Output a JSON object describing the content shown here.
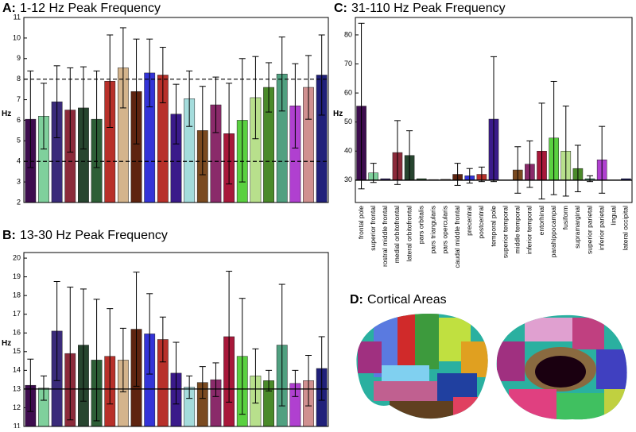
{
  "chart_data": [
    {
      "type": "bar",
      "panel": "A:",
      "title": "1-12 Hz Peak Frequency",
      "y_label": "Hz",
      "values": [
        6.05,
        6.2,
        6.9,
        6.5,
        6.6,
        6.05,
        7.9,
        8.55,
        7.4,
        8.3,
        8.2,
        6.3,
        7.05,
        5.5,
        6.75,
        5.35,
        6.0,
        7.1,
        7.6,
        8.25,
        6.7,
        7.6,
        8.2
      ],
      "errors": [
        2.35,
        1.6,
        1.75,
        2.05,
        2.0,
        2.35,
        2.25,
        1.95,
        2.55,
        1.65,
        1.35,
        1.45,
        1.35,
        2.15,
        1.35,
        2.45,
        3.0,
        2.0,
        1.2,
        1.8,
        2.05,
        1.55,
        1.95
      ],
      "colors": [
        "#3d0c4e",
        "#7fd09c",
        "#3a2b7a",
        "#8b2a3a",
        "#27452f",
        "#2d5e36",
        "#b8302a",
        "#d4b48c",
        "#5e2410",
        "#3434d8",
        "#b8302a",
        "#3a1a8a",
        "#a4dcdc",
        "#7a4a20",
        "#8a2a6a",
        "#a8183a",
        "#5ad040",
        "#b8e08c",
        "#4a8a2a",
        "#50a080",
        "#b040d0",
        "#d09090",
        "#20207a"
      ],
      "ylim": [
        2,
        11
      ],
      "yticks": [
        2,
        3,
        4,
        5,
        6,
        7,
        8,
        9,
        10,
        11
      ],
      "hlines": [
        4,
        8
      ],
      "hline_style": "dashed"
    },
    {
      "type": "bar",
      "panel": "B:",
      "title": "13-30 Hz Peak Frequency",
      "y_label": "Hz",
      "values": [
        13.2,
        13.05,
        16.1,
        14.9,
        15.35,
        14.55,
        14.75,
        14.55,
        16.2,
        15.95,
        15.65,
        13.85,
        13.1,
        13.35,
        13.5,
        15.8,
        14.75,
        13.7,
        13.45,
        15.35,
        13.3,
        13.45,
        14.1
      ],
      "errors": [
        1.4,
        0.65,
        2.65,
        3.55,
        3.0,
        3.25,
        2.55,
        1.7,
        3.05,
        2.15,
        1.2,
        1.65,
        0.6,
        0.85,
        0.9,
        3.5,
        3.1,
        1.45,
        0.55,
        3.25,
        0.7,
        1.35,
        1.7
      ],
      "colors": [
        "#3d0c4e",
        "#7fd09c",
        "#3a2b7a",
        "#8b2a3a",
        "#27452f",
        "#2d5e36",
        "#b8302a",
        "#d4b48c",
        "#5e2410",
        "#3434d8",
        "#b8302a",
        "#3a1a8a",
        "#a4dcdc",
        "#7a4a20",
        "#8a2a6a",
        "#a8183a",
        "#5ad040",
        "#b8e08c",
        "#4a8a2a",
        "#50a080",
        "#b040d0",
        "#d09090",
        "#20207a"
      ],
      "ylim": [
        11,
        20.3
      ],
      "yticks": [
        11,
        12,
        13,
        14,
        15,
        16,
        17,
        18,
        19,
        20
      ],
      "hlines": [
        13
      ],
      "hline_style": "solid"
    },
    {
      "type": "bar",
      "panel": "C:",
      "title": "31-110 Hz Peak Frequency",
      "y_label": "Hz",
      "categories": [
        "frontal pole",
        "superior frontal",
        "rostral middle frontal",
        "medial orbitofrontal",
        "lateral orbitofrontal",
        "pars orbitalis",
        "pars triangularis",
        "pars opercularis",
        "caudal middle frontal",
        "precentral",
        "postcentral",
        "temporal pole",
        "superior temporal",
        "middle temporal",
        "inferior temporal",
        "entorhinal",
        "parahippocampal",
        "fusiform",
        "supramarginal",
        "superior parietal",
        "inferior parietal",
        "lingual",
        "lateral occipital"
      ],
      "values": [
        55.5,
        32.5,
        30.5,
        39.5,
        38.5,
        30.5,
        30.2,
        30.3,
        32,
        31.5,
        32,
        51,
        30,
        33.5,
        35.5,
        40,
        44.5,
        40,
        34,
        30.5,
        37,
        30,
        30.5
      ],
      "errors": [
        28.5,
        3.3,
        0,
        11,
        8.5,
        0,
        0,
        0,
        3.8,
        2.5,
        2.5,
        21.5,
        0,
        8,
        8,
        16.5,
        19.5,
        15.5,
        8,
        1,
        11.5,
        0,
        0
      ],
      "colors": [
        "#3d0c4e",
        "#7fd09c",
        "#3a2b7a",
        "#8b2a3a",
        "#27452f",
        "#2d5e36",
        "#b8302a",
        "#d4b48c",
        "#5e2410",
        "#3434d8",
        "#b8302a",
        "#3a1a8a",
        "#a4dcdc",
        "#7a4a20",
        "#8a2a6a",
        "#a8183a",
        "#5ad040",
        "#b8e08c",
        "#4a8a2a",
        "#50a080",
        "#b040d0",
        "#d09090",
        "#20207a"
      ],
      "ylim": [
        22.3,
        86
      ],
      "yticks": [
        30,
        40,
        50,
        60,
        70,
        80
      ],
      "baseline": 30
    }
  ],
  "panel_d": {
    "panel": "D:",
    "title": "Cortical Areas"
  }
}
